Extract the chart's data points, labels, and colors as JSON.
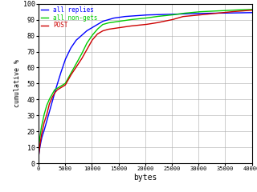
{
  "title": "",
  "xlabel": "bytes",
  "ylabel": "cumulative %",
  "xlim": [
    0,
    40000
  ],
  "ylim": [
    0,
    100
  ],
  "xticks": [
    0,
    5000,
    10000,
    15000,
    20000,
    25000,
    30000,
    35000,
    40000
  ],
  "yticks": [
    0,
    10,
    20,
    30,
    40,
    50,
    60,
    70,
    80,
    90,
    100
  ],
  "legend": [
    {
      "label": "all replies",
      "color": "#0000ff"
    },
    {
      "label": "all non-gets",
      "color": "#00cc00"
    },
    {
      "label": "POST",
      "color": "#cc0000"
    }
  ],
  "background_color": "#ffffff",
  "grid_color": "#aaaaaa",
  "font_family": "monospace",
  "blue_x": [
    0,
    100,
    300,
    600,
    1000,
    1500,
    2000,
    2500,
    3000,
    4000,
    5000,
    6000,
    7000,
    8000,
    9000,
    10000,
    11000,
    12000,
    14000,
    16000,
    20000,
    25000,
    30000,
    35000,
    40000
  ],
  "blue_y": [
    4,
    7,
    11,
    16,
    20,
    26,
    32,
    38,
    44,
    55,
    65,
    72,
    77,
    80,
    83,
    85,
    87,
    89,
    91,
    92,
    93,
    93.5,
    94,
    94.2,
    94.5
  ],
  "green_x": [
    0,
    200,
    500,
    1000,
    1500,
    2000,
    2500,
    3000,
    3500,
    4000,
    4500,
    5000,
    6000,
    7000,
    8000,
    9000,
    10000,
    11000,
    12000,
    13000,
    14000,
    15000,
    17000,
    20000,
    22000,
    25000,
    27000,
    30000,
    33000,
    36000,
    40000
  ],
  "green_y": [
    8,
    15,
    22,
    30,
    36,
    40,
    43,
    46,
    47,
    48,
    49,
    50,
    56,
    62,
    68,
    75,
    80,
    84,
    87,
    88,
    88.5,
    89,
    90,
    91,
    92,
    93,
    94,
    95,
    95.5,
    96,
    96.5
  ],
  "red_x": [
    0,
    200,
    500,
    1000,
    1500,
    2000,
    2500,
    3000,
    3500,
    4000,
    4500,
    5000,
    6000,
    7000,
    8000,
    9000,
    10000,
    11000,
    12000,
    13000,
    14000,
    15000,
    17000,
    20000,
    22000,
    25000,
    27000,
    30000,
    33000,
    36000,
    40000
  ],
  "red_y": [
    4,
    10,
    17,
    25,
    30,
    37,
    41,
    44,
    46,
    47,
    48,
    49,
    55,
    60,
    65,
    71,
    77,
    81,
    83,
    84,
    84.5,
    85,
    86,
    87,
    88,
    90,
    92,
    93,
    94,
    95,
    96
  ]
}
